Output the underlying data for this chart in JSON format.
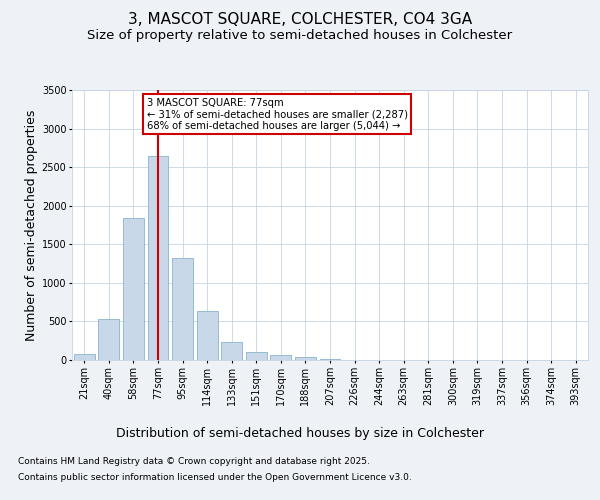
{
  "title": "3, MASCOT SQUARE, COLCHESTER, CO4 3GA",
  "subtitle": "Size of property relative to semi-detached houses in Colchester",
  "xlabel": "Distribution of semi-detached houses by size in Colchester",
  "ylabel": "Number of semi-detached properties",
  "categories": [
    "21sqm",
    "40sqm",
    "58sqm",
    "77sqm",
    "95sqm",
    "114sqm",
    "133sqm",
    "151sqm",
    "170sqm",
    "188sqm",
    "207sqm",
    "226sqm",
    "244sqm",
    "263sqm",
    "281sqm",
    "300sqm",
    "319sqm",
    "337sqm",
    "356sqm",
    "374sqm",
    "393sqm"
  ],
  "values": [
    80,
    530,
    1840,
    2650,
    1320,
    630,
    230,
    110,
    70,
    35,
    15,
    5,
    2,
    1,
    0,
    0,
    0,
    0,
    0,
    0,
    0
  ],
  "bar_color": "#c8d8e8",
  "bar_edge_color": "#8ab4cc",
  "marker_index": 3,
  "marker_color": "#cc0000",
  "annotation_title": "3 MASCOT SQUARE: 77sqm",
  "annotation_line1": "← 31% of semi-detached houses are smaller (2,287)",
  "annotation_line2": "68% of semi-detached houses are larger (5,044) →",
  "annotation_box_color": "#cc0000",
  "ylim": [
    0,
    3500
  ],
  "yticks": [
    0,
    500,
    1000,
    1500,
    2000,
    2500,
    3000,
    3500
  ],
  "footnote1": "Contains HM Land Registry data © Crown copyright and database right 2025.",
  "footnote2": "Contains public sector information licensed under the Open Government Licence v3.0.",
  "bg_color": "#eef2f7",
  "plot_bg_color": "#ffffff",
  "title_fontsize": 11,
  "subtitle_fontsize": 9.5,
  "tick_fontsize": 7,
  "label_fontsize": 9,
  "footnote_fontsize": 6.5
}
